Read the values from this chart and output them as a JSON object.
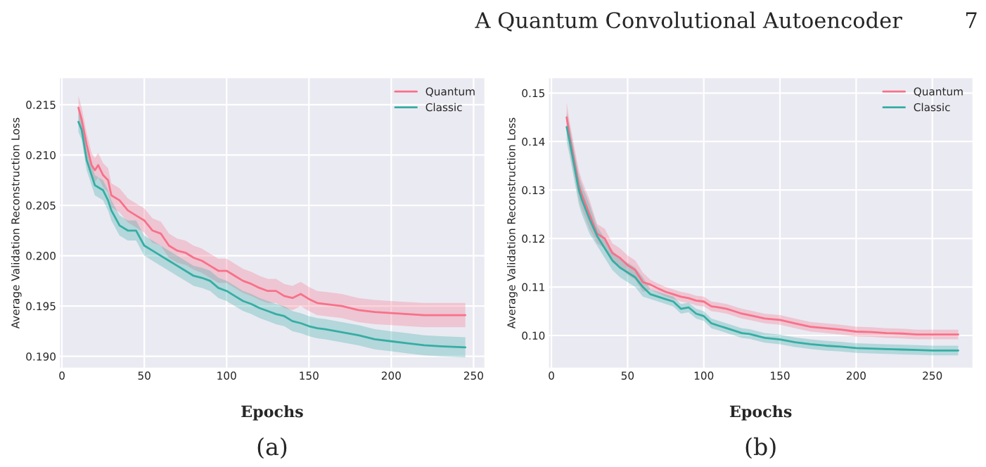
{
  "chart_data": [
    {
      "type": "line",
      "xlabel": "Epochs",
      "ylabel": "Average Validation Reconstruction Loss",
      "annotations": [
        "A Quantum Convolutional Autoencoder",
        "7",
        "(a)"
      ],
      "xlim": [
        -1.7,
        257
      ],
      "ylim": [
        0.1888,
        0.2177
      ],
      "xticks": [
        0,
        50,
        100,
        150,
        200,
        250
      ],
      "yticks": [
        {
          "value": 0.19,
          "label": "0.190"
        },
        {
          "value": 0.195,
          "label": "0.195"
        },
        {
          "value": 0.2,
          "label": "0.200"
        },
        {
          "value": 0.205,
          "label": "0.205"
        },
        {
          "value": 0.21,
          "label": "0.210"
        },
        {
          "value": 0.215,
          "label": "0.215"
        }
      ],
      "grid": true,
      "legend": "top right",
      "line_style": "solid",
      "x": [
        10,
        12,
        15,
        18,
        20,
        22,
        25,
        28,
        30,
        35,
        40,
        45,
        50,
        55,
        60,
        65,
        70,
        75,
        80,
        85,
        90,
        95,
        100,
        105,
        110,
        115,
        120,
        125,
        130,
        135,
        140,
        145,
        150,
        155,
        160,
        170,
        180,
        190,
        200,
        210,
        220,
        230,
        245
      ],
      "series": [
        {
          "name": "Quantum",
          "color": "#f77189",
          "values": [
            0.2147,
            0.2135,
            0.211,
            0.209,
            0.2085,
            0.209,
            0.208,
            0.2075,
            0.206,
            0.2055,
            0.2045,
            0.204,
            0.2035,
            0.2025,
            0.2022,
            0.201,
            0.2005,
            0.2003,
            0.1998,
            0.1995,
            0.199,
            0.1985,
            0.1985,
            0.198,
            0.1975,
            0.1972,
            0.1968,
            0.1965,
            0.1965,
            0.196,
            0.1958,
            0.1962,
            0.1957,
            0.1953,
            0.1952,
            0.195,
            0.1946,
            0.1944,
            0.1943,
            0.1942,
            0.1941,
            0.1941,
            0.1941
          ],
          "upper": [
            0.2159,
            0.2147,
            0.2122,
            0.2102,
            0.2097,
            0.2102,
            0.2092,
            0.2087,
            0.2072,
            0.2067,
            0.2057,
            0.2052,
            0.2047,
            0.2037,
            0.2034,
            0.2022,
            0.2017,
            0.2015,
            0.201,
            0.2007,
            0.2002,
            0.1997,
            0.1997,
            0.1992,
            0.1987,
            0.1984,
            0.198,
            0.1977,
            0.1977,
            0.1972,
            0.197,
            0.1974,
            0.1969,
            0.1965,
            0.1964,
            0.1962,
            0.1958,
            0.1956,
            0.1955,
            0.1954,
            0.1953,
            0.1953,
            0.1953
          ],
          "lower": [
            0.2135,
            0.2123,
            0.2098,
            0.2078,
            0.2073,
            0.2078,
            0.2068,
            0.2063,
            0.2048,
            0.2043,
            0.2033,
            0.2028,
            0.2023,
            0.2013,
            0.201,
            0.1998,
            0.1993,
            0.1991,
            0.1986,
            0.1983,
            0.1978,
            0.1973,
            0.1973,
            0.1968,
            0.1963,
            0.196,
            0.1956,
            0.1953,
            0.1953,
            0.1948,
            0.1946,
            0.195,
            0.1945,
            0.1941,
            0.194,
            0.1938,
            0.1934,
            0.1932,
            0.1931,
            0.193,
            0.1929,
            0.1929,
            0.1929
          ]
        },
        {
          "name": "Classic",
          "color": "#36ada4",
          "values": [
            0.2133,
            0.2125,
            0.2095,
            0.208,
            0.207,
            0.2068,
            0.2065,
            0.2055,
            0.2045,
            0.203,
            0.2025,
            0.2025,
            0.201,
            0.2005,
            0.2,
            0.1995,
            0.199,
            0.1985,
            0.198,
            0.1978,
            0.1975,
            0.1968,
            0.1965,
            0.196,
            0.1955,
            0.1952,
            0.1948,
            0.1945,
            0.1942,
            0.194,
            0.1935,
            0.1933,
            0.193,
            0.1928,
            0.1927,
            0.1924,
            0.1921,
            0.1917,
            0.1915,
            0.1913,
            0.1911,
            0.191,
            0.1909
          ],
          "upper": [
            0.2143,
            0.2135,
            0.2105,
            0.209,
            0.208,
            0.2078,
            0.2075,
            0.2065,
            0.2055,
            0.204,
            0.2035,
            0.2035,
            0.202,
            0.2015,
            0.201,
            0.2005,
            0.2,
            0.1995,
            0.199,
            0.1988,
            0.1985,
            0.1978,
            0.1975,
            0.197,
            0.1965,
            0.1962,
            0.1958,
            0.1955,
            0.1952,
            0.195,
            0.1945,
            0.1943,
            0.194,
            0.1938,
            0.1937,
            0.1934,
            0.1931,
            0.1927,
            0.1925,
            0.1923,
            0.1921,
            0.192,
            0.1919
          ],
          "lower": [
            0.2123,
            0.2115,
            0.2085,
            0.207,
            0.206,
            0.2058,
            0.2055,
            0.2045,
            0.2035,
            0.202,
            0.2015,
            0.2015,
            0.2,
            0.1995,
            0.199,
            0.1985,
            0.198,
            0.1975,
            0.197,
            0.1968,
            0.1965,
            0.1958,
            0.1955,
            0.195,
            0.1945,
            0.1942,
            0.1938,
            0.1935,
            0.1932,
            0.193,
            0.1925,
            0.1923,
            0.192,
            0.1918,
            0.1917,
            0.1914,
            0.1911,
            0.1907,
            0.1905,
            0.1903,
            0.1901,
            0.19,
            0.1899
          ]
        }
      ]
    },
    {
      "type": "line",
      "xlabel": "Epochs",
      "ylabel": "Average Validation Reconstruction Loss",
      "annotations": [
        "(b)"
      ],
      "xlim": [
        -2.1,
        276.8
      ],
      "ylim": [
        0.0932,
        0.1532
      ],
      "xticks": [
        0,
        50,
        100,
        150,
        200,
        250
      ],
      "yticks": [
        {
          "value": 0.1,
          "label": "0.10"
        },
        {
          "value": 0.11,
          "label": "0.11"
        },
        {
          "value": 0.12,
          "label": "0.12"
        },
        {
          "value": 0.13,
          "label": "0.13"
        },
        {
          "value": 0.14,
          "label": "0.14"
        },
        {
          "value": 0.15,
          "label": "0.15"
        }
      ],
      "grid": true,
      "legend": "top right",
      "line_style": "solid",
      "x": [
        10,
        12,
        15,
        18,
        20,
        25,
        30,
        35,
        40,
        45,
        50,
        55,
        60,
        65,
        70,
        75,
        80,
        85,
        90,
        95,
        100,
        105,
        110,
        115,
        120,
        125,
        130,
        140,
        150,
        160,
        170,
        180,
        190,
        200,
        210,
        220,
        230,
        240,
        250,
        267
      ],
      "series": [
        {
          "name": "Quantum",
          "color": "#f77189",
          "values": [
            0.145,
            0.141,
            0.136,
            0.131,
            0.129,
            0.125,
            0.121,
            0.12,
            0.117,
            0.116,
            0.1145,
            0.1135,
            0.111,
            0.1105,
            0.1097,
            0.109,
            0.1085,
            0.108,
            0.1077,
            0.1072,
            0.107,
            0.106,
            0.1058,
            0.1055,
            0.105,
            0.1045,
            0.1042,
            0.1035,
            0.1032,
            0.1025,
            0.1018,
            0.1015,
            0.1012,
            0.1008,
            0.1007,
            0.1005,
            0.1004,
            0.1002,
            0.1002,
            0.1002
          ],
          "upper": [
            0.148,
            0.144,
            0.139,
            0.134,
            0.132,
            0.128,
            0.123,
            0.122,
            0.119,
            0.118,
            0.1165,
            0.1155,
            0.113,
            0.1115,
            0.1107,
            0.11,
            0.1095,
            0.109,
            0.1087,
            0.1082,
            0.108,
            0.107,
            0.1068,
            0.1065,
            0.106,
            0.1055,
            0.1052,
            0.1045,
            0.1042,
            0.1035,
            0.1028,
            0.1025,
            0.1022,
            0.1018,
            0.1017,
            0.1015,
            0.1014,
            0.1012,
            0.1012,
            0.1012
          ],
          "lower": [
            0.142,
            0.138,
            0.133,
            0.128,
            0.126,
            0.122,
            0.119,
            0.118,
            0.115,
            0.114,
            0.1125,
            0.1115,
            0.109,
            0.1095,
            0.1087,
            0.108,
            0.1075,
            0.107,
            0.1067,
            0.1062,
            0.106,
            0.105,
            0.1048,
            0.1045,
            0.104,
            0.1035,
            0.1032,
            0.1025,
            0.1022,
            0.1015,
            0.1008,
            0.1005,
            0.1002,
            0.0998,
            0.0997,
            0.0995,
            0.0994,
            0.0992,
            0.0992,
            0.0992
          ]
        },
        {
          "name": "Classic",
          "color": "#36ada4",
          "values": [
            0.143,
            0.14,
            0.135,
            0.13,
            0.128,
            0.124,
            0.1205,
            0.118,
            0.1155,
            0.114,
            0.113,
            0.112,
            0.11,
            0.1085,
            0.108,
            0.1075,
            0.107,
            0.1055,
            0.1058,
            0.1045,
            0.104,
            0.1025,
            0.102,
            0.1015,
            0.101,
            0.1005,
            0.1003,
            0.0995,
            0.0992,
            0.0986,
            0.0982,
            0.0979,
            0.0977,
            0.0974,
            0.0973,
            0.0972,
            0.0971,
            0.097,
            0.0969,
            0.0969
          ],
          "upper": [
            0.146,
            0.143,
            0.138,
            0.133,
            0.131,
            0.127,
            0.1225,
            0.12,
            0.1175,
            0.116,
            0.115,
            0.114,
            0.112,
            0.1095,
            0.109,
            0.1085,
            0.108,
            0.1065,
            0.1068,
            0.1055,
            0.105,
            0.1035,
            0.103,
            0.1025,
            0.102,
            0.1015,
            0.1013,
            0.1005,
            0.1002,
            0.0996,
            0.0992,
            0.0989,
            0.0987,
            0.0984,
            0.0983,
            0.0982,
            0.0981,
            0.098,
            0.0979,
            0.0979
          ],
          "lower": [
            0.14,
            0.137,
            0.132,
            0.127,
            0.125,
            0.121,
            0.1185,
            0.116,
            0.1135,
            0.112,
            0.111,
            0.11,
            0.108,
            0.1075,
            0.107,
            0.1065,
            0.106,
            0.1045,
            0.1048,
            0.1035,
            0.103,
            0.1015,
            0.101,
            0.1005,
            0.1,
            0.0995,
            0.0993,
            0.0985,
            0.0982,
            0.0976,
            0.0972,
            0.0969,
            0.0967,
            0.0964,
            0.0963,
            0.0962,
            0.0961,
            0.096,
            0.0959,
            0.0959
          ]
        }
      ]
    }
  ]
}
